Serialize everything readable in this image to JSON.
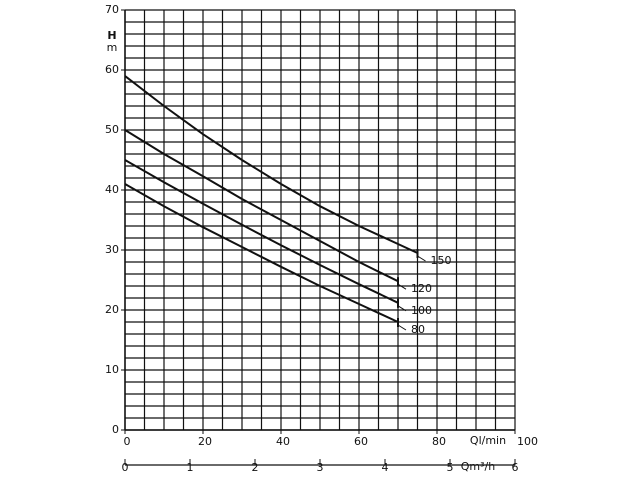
{
  "chart_data": {
    "type": "line",
    "y_label": "H",
    "y_unit": "m",
    "x_label": "Ql/min",
    "x2_label": "Qm³/h",
    "xlim": [
      0,
      100
    ],
    "xticks": [
      0,
      20,
      40,
      60,
      80,
      100
    ],
    "x2lim": [
      0,
      6
    ],
    "x2ticks": [
      0,
      1,
      2,
      3,
      4,
      5,
      6
    ],
    "ylim": [
      0,
      70
    ],
    "yticks": [
      0,
      10,
      20,
      30,
      40,
      50,
      60,
      70
    ],
    "grid": true,
    "grid_x_step": 5,
    "grid_y_step": 2,
    "series": [
      {
        "name": "150",
        "color": "#111111",
        "x": [
          0,
          10,
          20,
          30,
          40,
          50,
          60,
          70,
          75
        ],
        "values": [
          59,
          54,
          49.3,
          45,
          41,
          37.3,
          34,
          31,
          29.5
        ]
      },
      {
        "name": "120",
        "color": "#111111",
        "x": [
          0,
          10,
          20,
          30,
          40,
          50,
          60,
          70
        ],
        "values": [
          50,
          46,
          42.3,
          38.5,
          35,
          31.5,
          28,
          24.8
        ]
      },
      {
        "name": "100",
        "color": "#111111",
        "x": [
          0,
          10,
          20,
          30,
          40,
          50,
          60,
          70
        ],
        "values": [
          45,
          41.3,
          37.7,
          34.2,
          30.8,
          27.5,
          24.3,
          21.2
        ]
      },
      {
        "name": "80",
        "color": "#111111",
        "x": [
          0,
          10,
          20,
          30,
          40,
          50,
          60,
          70
        ],
        "values": [
          41,
          37.3,
          33.8,
          30.5,
          27.2,
          24,
          21,
          18
        ]
      }
    ]
  }
}
